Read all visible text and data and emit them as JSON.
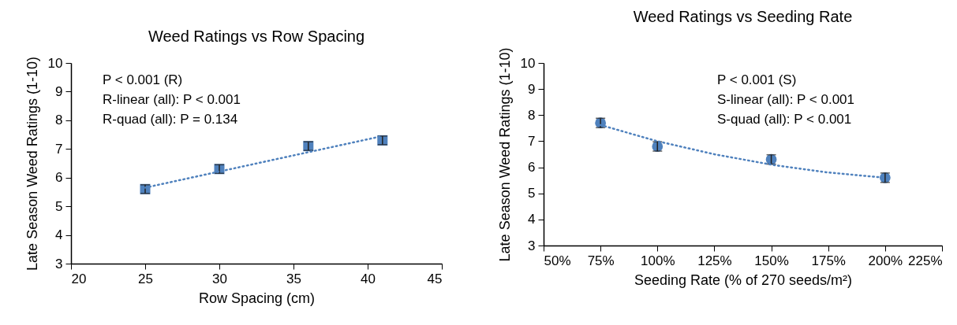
{
  "chart_data": [
    {
      "type": "scatter",
      "title": "Weed Ratings vs Row Spacing",
      "xlabel": "Row Spacing (cm)",
      "ylabel": "Late Season Weed Ratings (1-10)",
      "marker": "square",
      "grid": false,
      "xlim": [
        20,
        45
      ],
      "xticks": [
        20,
        25,
        30,
        35,
        40,
        45
      ],
      "ylim": [
        3,
        10
      ],
      "yticks": [
        3,
        4,
        5,
        6,
        7,
        8,
        9,
        10
      ],
      "annotations": [
        "P < 0.001 (R)",
        "R-linear (all): P < 0.001",
        "R-quad (all): P = 0.134"
      ],
      "series": [
        {
          "color": "#4f81bd",
          "x": [
            25,
            30,
            36,
            41
          ],
          "values": [
            5.6,
            6.3,
            7.1,
            7.3
          ],
          "errors": [
            0.15,
            0.15,
            0.15,
            0.15
          ]
        },
        {
          "type": "line",
          "color": "#4f81bd",
          "marker": "none",
          "line_style": "dotted",
          "x": [
            25,
            41
          ],
          "values": [
            5.65,
            7.45
          ]
        }
      ]
    },
    {
      "type": "scatter",
      "title": "Weed Ratings vs Seeding Rate",
      "xlabel": "Seeding Rate (% of 270 seeds/m²)",
      "ylabel": "Late Season Weed Ratings (1-10)",
      "marker": "circle",
      "grid": false,
      "xlim": [
        50,
        225
      ],
      "xticks": [
        {
          "value": 50,
          "label": "50%"
        },
        {
          "value": 75,
          "label": "75%"
        },
        {
          "value": 100,
          "label": "100%"
        },
        {
          "value": 125,
          "label": "125%"
        },
        {
          "value": 150,
          "label": "150%"
        },
        {
          "value": 175,
          "label": "175%"
        },
        {
          "value": 200,
          "label": "200%"
        },
        {
          "value": 225,
          "label": "225%"
        }
      ],
      "ylim": [
        3,
        10
      ],
      "yticks": [
        3,
        4,
        5,
        6,
        7,
        8,
        9,
        10
      ],
      "annotations": [
        "P < 0.001 (S)",
        "S-linear (all): P < 0.001",
        "S-quad (all): P < 0.001"
      ],
      "series": [
        {
          "color": "#4f81bd",
          "x": [
            75,
            100,
            150,
            200
          ],
          "values": [
            7.7,
            6.8,
            6.3,
            5.6
          ],
          "errors": [
            0.18,
            0.18,
            0.18,
            0.18
          ]
        },
        {
          "type": "line",
          "color": "#4f81bd",
          "marker": "none",
          "line_style": "dotted",
          "x": [
            75,
            100,
            125,
            150,
            175,
            200
          ],
          "values": [
            7.62,
            7.0,
            6.5,
            6.1,
            5.8,
            5.6
          ]
        }
      ]
    }
  ]
}
